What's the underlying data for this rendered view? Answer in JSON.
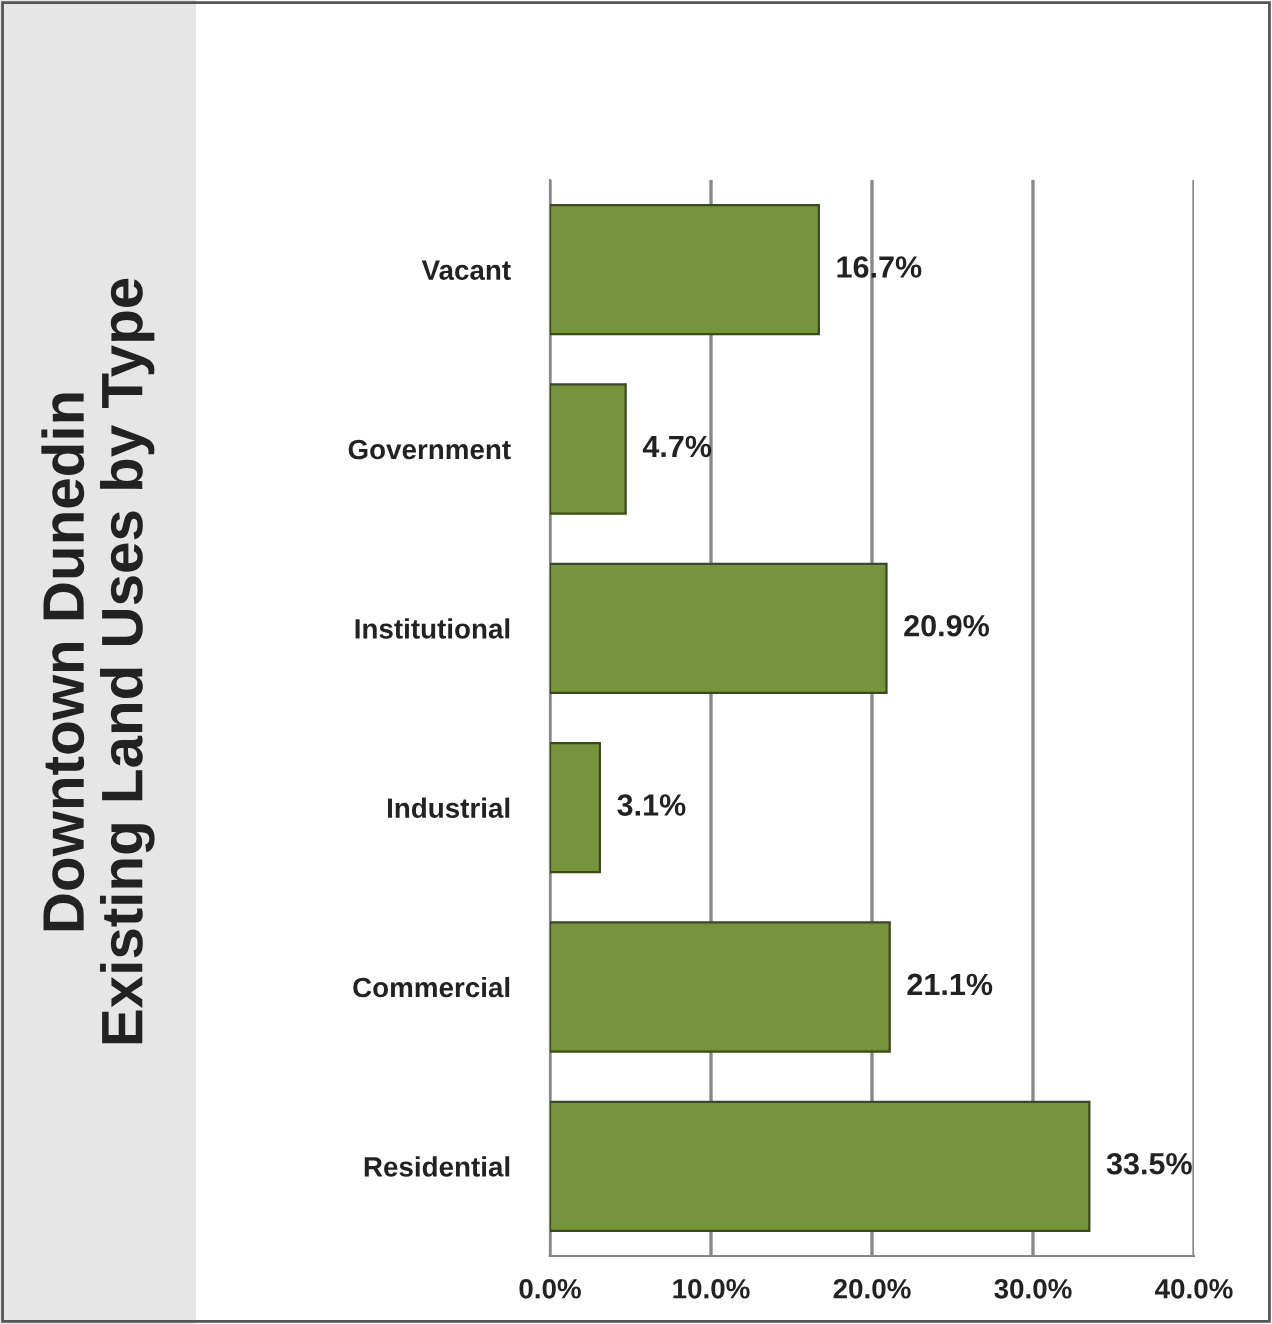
{
  "chart_data": {
    "type": "bar",
    "orientation": "horizontal",
    "title": "Downtown Dunedin",
    "subtitle": "Existing Land Uses by Type",
    "categories": [
      "Vacant",
      "Government",
      "Institutional",
      "Industrial",
      "Commercial",
      "Residential"
    ],
    "values": [
      16.7,
      4.7,
      20.9,
      3.1,
      21.1,
      33.5
    ],
    "value_labels": [
      "16.7%",
      "4.7%",
      "20.9%",
      "3.1%",
      "21.1%",
      "33.5%"
    ],
    "color": "#77933c",
    "xlim": [
      0,
      40
    ],
    "xticks": [
      {
        "value": 0,
        "label": "0.0%"
      },
      {
        "value": 10,
        "label": "10.0%"
      },
      {
        "value": 20,
        "label": "20.0%"
      },
      {
        "value": 30,
        "label": "30.0%"
      },
      {
        "value": 40,
        "label": "40.0%"
      }
    ],
    "grid": "x",
    "legend": false
  }
}
